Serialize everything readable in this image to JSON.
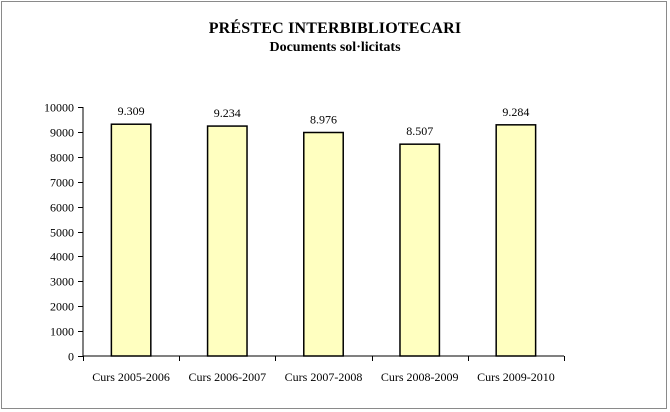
{
  "chart_data": {
    "type": "bar",
    "title": "PRÉSTEC INTERBIBLIOTECARI",
    "subtitle": "Documents sol·licitats",
    "categories": [
      "Curs 2005-2006",
      "Curs 2006-2007",
      "Curs 2007-2008",
      "Curs 2008-2009",
      "Curs 2009-2010"
    ],
    "values": [
      9309,
      9234,
      8976,
      8507,
      9284
    ],
    "data_labels": [
      "9.309",
      "9.234",
      "8.976",
      "8.507",
      "9.284"
    ],
    "ylim": [
      0,
      10000
    ],
    "yticks": [
      0,
      1000,
      2000,
      3000,
      4000,
      5000,
      6000,
      7000,
      8000,
      9000,
      10000
    ],
    "grid": false,
    "legend": "none",
    "bar_color": "#ffffc0",
    "bar_edge": "#000000"
  }
}
